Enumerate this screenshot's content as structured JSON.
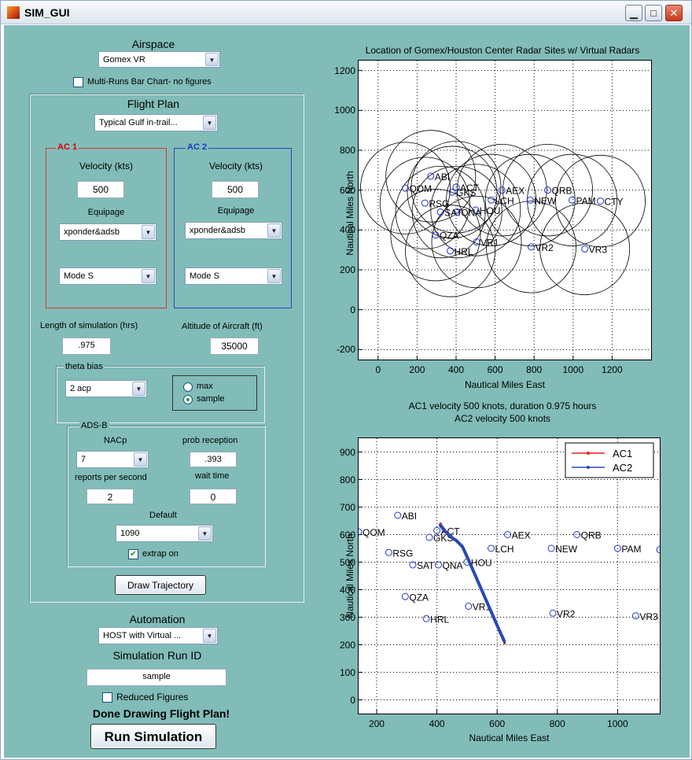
{
  "window": {
    "title": "SIM_GUI",
    "minimize": "▁",
    "maximize": "□",
    "close": "✕"
  },
  "left": {
    "airspace_label": "Airspace",
    "airspace_value": "Gomex VR",
    "multi_runs_label": "Multi-Runs Bar Chart- no figures",
    "flight_plan": {
      "title": "Flight Plan",
      "value": "Typical Gulf in-trail...",
      "ac1": {
        "title": "AC 1",
        "velocity_label": "Velocity (kts)",
        "velocity": "500",
        "equipage_label": "Equipage",
        "equipage": "xponder&adsb",
        "mode": "Mode S",
        "color": "#ff0000"
      },
      "ac2": {
        "title": "AC 2",
        "velocity_label": "Velocity (kts)",
        "velocity": "500",
        "equipage_label": "Equipage",
        "equipage": "xponder&adsb",
        "mode": "Mode S",
        "color": "#2233cc"
      },
      "length_label": "Length of simulation (hrs)",
      "length": ".975",
      "altitude_label": "Altitude of Aircraft (ft)",
      "altitude": "35000",
      "theta_bias": {
        "title": "theta bias",
        "value": "2 acp",
        "radio_max": "max",
        "radio_sample": "sample",
        "selected": "sample"
      },
      "adsb": {
        "title": "ADS-B",
        "nacp_label": "NACp",
        "nacp": "7",
        "prob_label": "prob reception",
        "prob": ".393",
        "reports_label": "reports per second",
        "reports": "2",
        "wait_label": "wait time",
        "wait": "0",
        "default_label": "Default",
        "default": "1090",
        "extrap_label": "extrap on",
        "extrap_checked": true
      },
      "draw_button": "Draw Trajectory"
    },
    "automation_label": "Automation",
    "automation_value": "HOST with Virtual ...",
    "run_id_label": "Simulation Run ID",
    "run_id": "sample",
    "reduced_label": "Reduced Figures",
    "status": "Done Drawing Flight Plan!",
    "run_button": "Run Simulation"
  },
  "chart_data": [
    {
      "type": "scatter",
      "title": "Location of Gomex/Houston Center Radar Sites w/ Virtual Radars",
      "xlabel": "Nautical Miles East",
      "ylabel": "Nautical Miles North",
      "xlim": [
        -100,
        1400
      ],
      "ylim": [
        -250,
        1250
      ],
      "xticks": [
        0,
        200,
        400,
        600,
        800,
        1000,
        1200
      ],
      "yticks": [
        -200,
        0,
        200,
        400,
        600,
        800,
        1000,
        1200
      ],
      "grid": true,
      "coverage_radius": 230,
      "sites": [
        {
          "name": "QOM",
          "x": 140,
          "y": 610
        },
        {
          "name": "ABI",
          "x": 270,
          "y": 670
        },
        {
          "name": "RSG",
          "x": 240,
          "y": 535
        },
        {
          "name": "ACT",
          "x": 400,
          "y": 615
        },
        {
          "name": "GKS",
          "x": 380,
          "y": 590
        },
        {
          "name": "SAT",
          "x": 320,
          "y": 490
        },
        {
          "name": "QNA",
          "x": 405,
          "y": 490
        },
        {
          "name": "HOU",
          "x": 500,
          "y": 500
        },
        {
          "name": "LCH",
          "x": 580,
          "y": 550
        },
        {
          "name": "AEX",
          "x": 635,
          "y": 600
        },
        {
          "name": "QRB",
          "x": 870,
          "y": 600
        },
        {
          "name": "NEW",
          "x": 780,
          "y": 550
        },
        {
          "name": "PAM",
          "x": 995,
          "y": 550
        },
        {
          "name": "CTY",
          "x": 1140,
          "y": 545
        },
        {
          "name": "QZA",
          "x": 295,
          "y": 375
        },
        {
          "name": "VR1",
          "x": 505,
          "y": 340
        },
        {
          "name": "HRL",
          "x": 370,
          "y": 295
        },
        {
          "name": "VR2",
          "x": 785,
          "y": 315
        },
        {
          "name": "VR3",
          "x": 1060,
          "y": 305
        }
      ]
    },
    {
      "type": "line",
      "title": "AC1 velocity 500 knots, duration 0.975 hours",
      "subtitle": "AC2 velocity 500 knots",
      "xlabel": "Nautical Miles East",
      "ylabel": "Nautical Miles North",
      "xlim": [
        140,
        1140
      ],
      "ylim": [
        -50,
        950
      ],
      "xticks": [
        200,
        400,
        600,
        800,
        1000
      ],
      "yticks": [
        0,
        100,
        200,
        300,
        400,
        500,
        600,
        700,
        800,
        900
      ],
      "grid": true,
      "legend_position": "top-right",
      "series": [
        {
          "name": "AC1",
          "color": "#e32222",
          "x": [
            625,
            605,
            585,
            565,
            545,
            525,
            505,
            485,
            465,
            445,
            425,
            412
          ],
          "y": [
            205,
            255,
            305,
            355,
            405,
            455,
            505,
            555,
            580,
            595,
            620,
            640
          ]
        },
        {
          "name": "AC2",
          "color": "#2a48b5",
          "x": [
            625,
            605,
            585,
            565,
            545,
            525,
            505,
            485,
            465,
            445,
            425,
            410
          ],
          "y": [
            210,
            258,
            308,
            358,
            408,
            458,
            508,
            556,
            578,
            592,
            615,
            635
          ]
        }
      ],
      "sites": [
        {
          "name": "QOM",
          "x": 140,
          "y": 610
        },
        {
          "name": "ABI",
          "x": 270,
          "y": 670
        },
        {
          "name": "RSG",
          "x": 240,
          "y": 535
        },
        {
          "name": "ACT",
          "x": 400,
          "y": 615
        },
        {
          "name": "GKS",
          "x": 375,
          "y": 590
        },
        {
          "name": "SAT",
          "x": 320,
          "y": 490
        },
        {
          "name": "QNA",
          "x": 405,
          "y": 490
        },
        {
          "name": "HOU",
          "x": 500,
          "y": 500
        },
        {
          "name": "LCH",
          "x": 580,
          "y": 550
        },
        {
          "name": "AEX",
          "x": 635,
          "y": 600
        },
        {
          "name": "QRB",
          "x": 865,
          "y": 600
        },
        {
          "name": "NEW",
          "x": 780,
          "y": 550
        },
        {
          "name": "PAM",
          "x": 1000,
          "y": 550
        },
        {
          "name": "CTY",
          "x": 1140,
          "y": 545
        },
        {
          "name": "QZA",
          "x": 295,
          "y": 375
        },
        {
          "name": "VR1",
          "x": 505,
          "y": 340
        },
        {
          "name": "HRL",
          "x": 365,
          "y": 295
        },
        {
          "name": "VR2",
          "x": 785,
          "y": 315
        },
        {
          "name": "VR3",
          "x": 1060,
          "y": 305
        }
      ]
    }
  ]
}
